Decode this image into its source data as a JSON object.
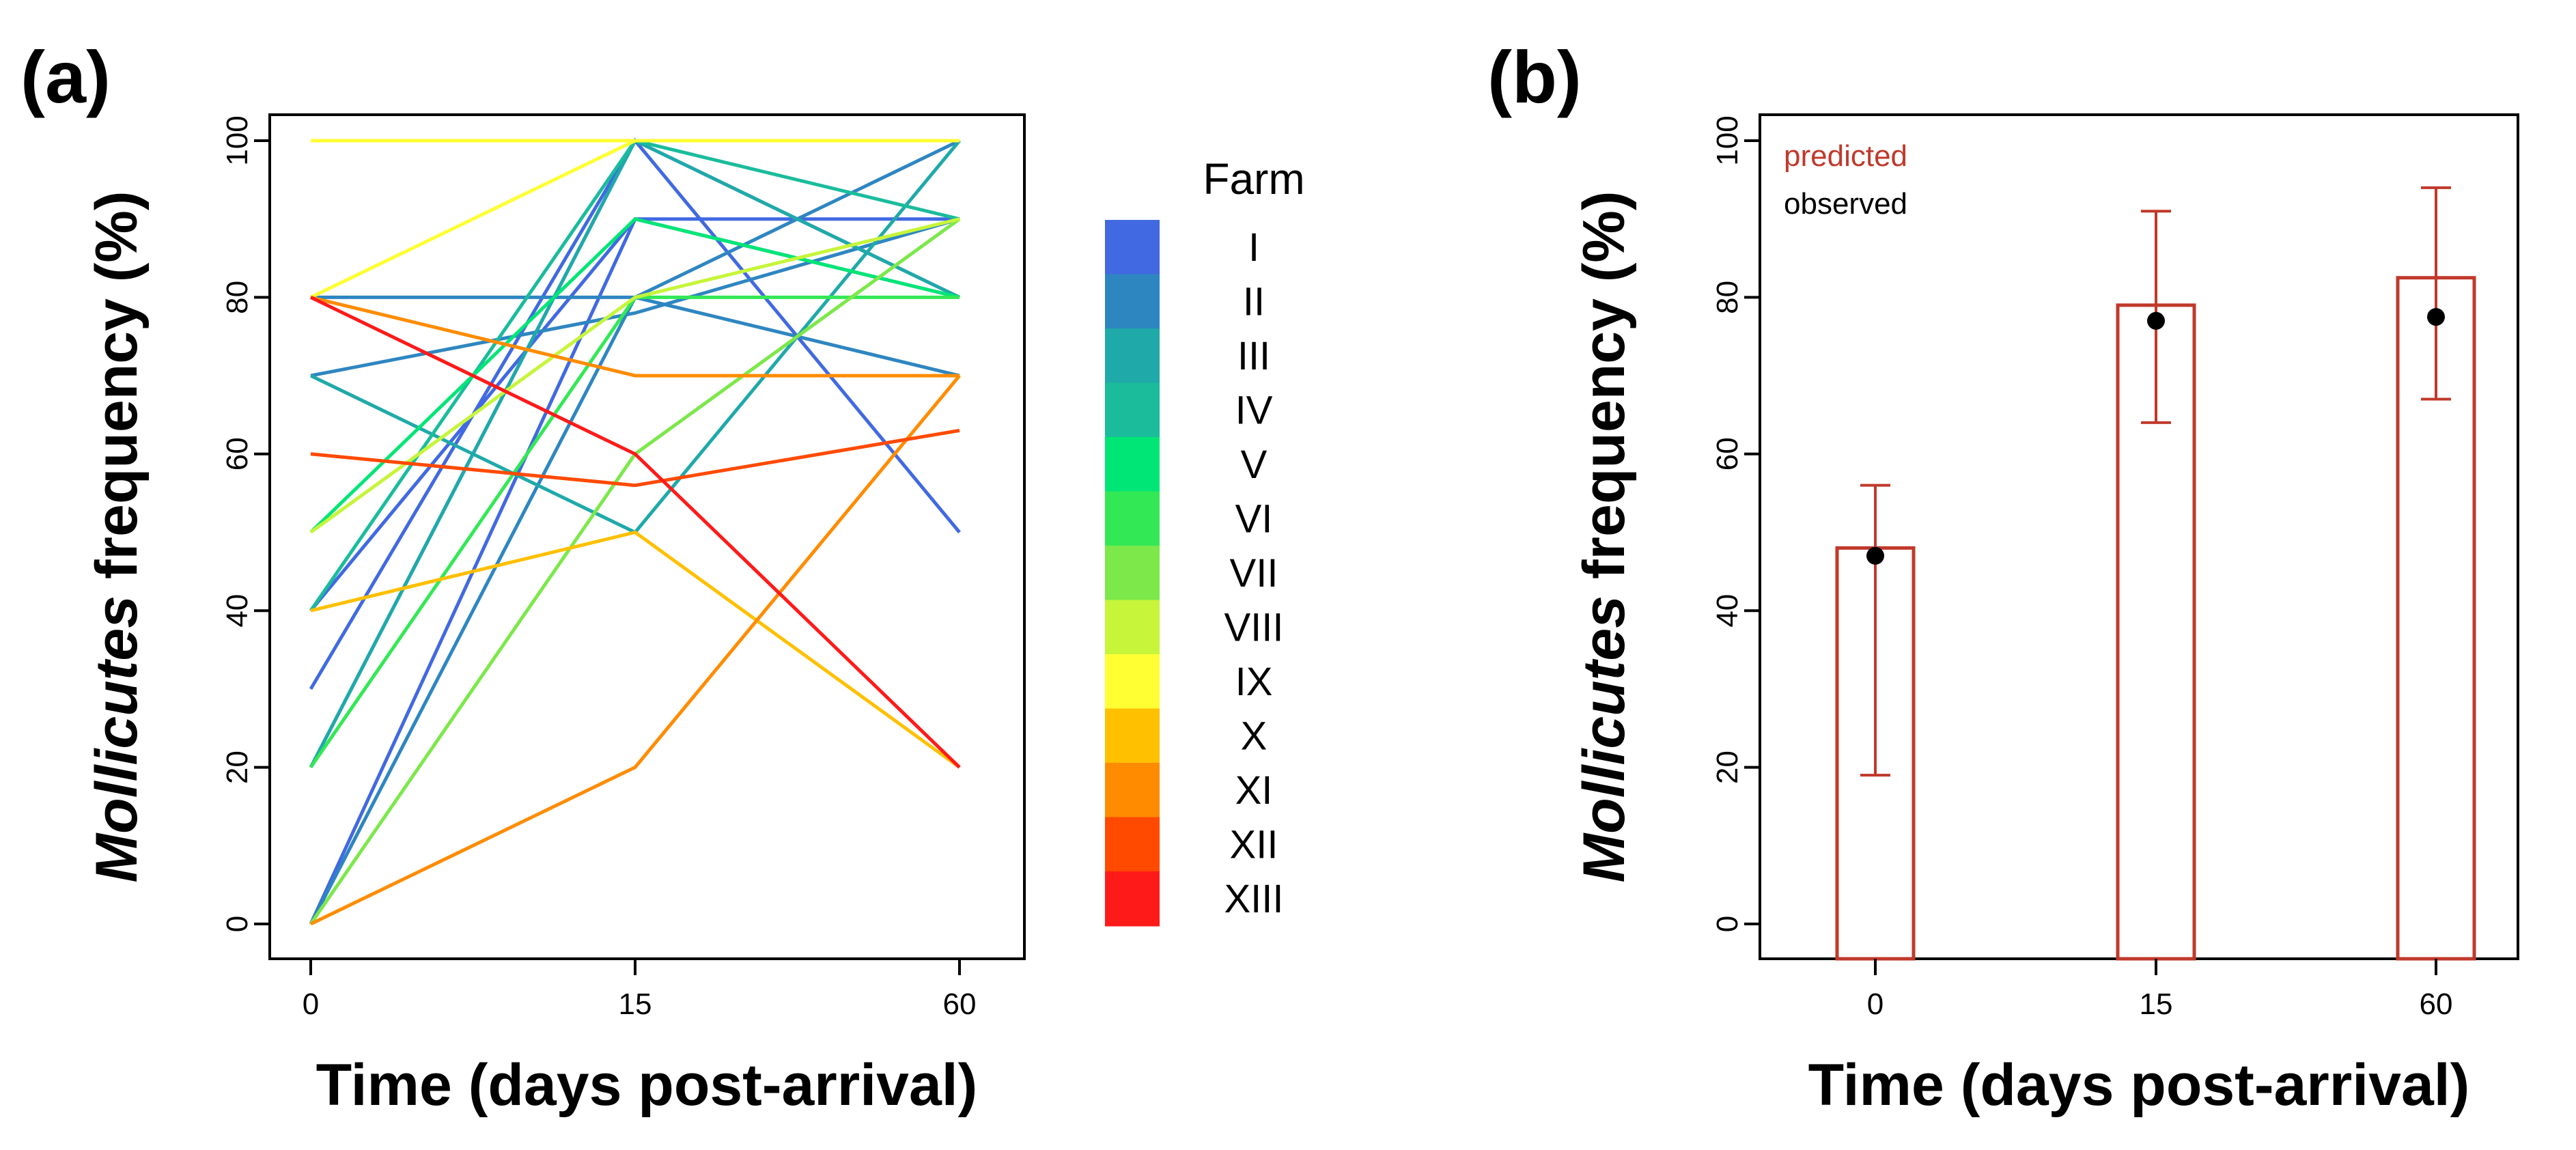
{
  "chart_data": [
    {
      "panel_label": "(a)",
      "type": "line",
      "xlabel": "Time (days post-arrival)",
      "ylabel_italic": "Mollicutes",
      "ylabel_rest": " frequency (%)",
      "x_categories": [
        "0",
        "15",
        "60"
      ],
      "y_ticks": [
        "0",
        "20",
        "40",
        "60",
        "80",
        "100"
      ],
      "ylim": [
        0,
        100
      ],
      "legend": {
        "title": "Farm",
        "placement": "right",
        "items": [
          {
            "label": "I",
            "color": "#4169E1"
          },
          {
            "label": "II",
            "color": "#2E86C1"
          },
          {
            "label": "III",
            "color": "#1FA9A9"
          },
          {
            "label": "IV",
            "color": "#1ABC9C"
          },
          {
            "label": "V",
            "color": "#00E676"
          },
          {
            "label": "VI",
            "color": "#33E855"
          },
          {
            "label": "VII",
            "color": "#7CE84A"
          },
          {
            "label": "VIII",
            "color": "#C6F53A"
          },
          {
            "label": "IX",
            "color": "#FFFF33"
          },
          {
            "label": "X",
            "color": "#FFC000"
          },
          {
            "label": "XI",
            "color": "#FF8C00"
          },
          {
            "label": "XII",
            "color": "#FF4A00"
          },
          {
            "label": "XIII",
            "color": "#FF1A1A"
          }
        ]
      },
      "series": [
        {
          "farm": "I",
          "values": [
            0,
            90,
            90
          ]
        },
        {
          "farm": "I",
          "values": [
            20,
            100,
            50
          ]
        },
        {
          "farm": "I",
          "values": [
            30,
            100,
            80
          ]
        },
        {
          "farm": "I",
          "values": [
            40,
            90,
            80
          ]
        },
        {
          "farm": "II",
          "values": [
            70,
            78,
            90
          ]
        },
        {
          "farm": "II",
          "values": [
            0,
            80,
            100
          ]
        },
        {
          "farm": "II",
          "values": [
            80,
            80,
            70
          ]
        },
        {
          "farm": "III",
          "values": [
            70,
            50,
            100
          ]
        },
        {
          "farm": "III",
          "values": [
            20,
            100,
            80
          ]
        },
        {
          "farm": "IV",
          "values": [
            40,
            100,
            90
          ]
        },
        {
          "farm": "V",
          "values": [
            50,
            90,
            80
          ]
        },
        {
          "farm": "VI",
          "values": [
            20,
            80,
            80
          ]
        },
        {
          "farm": "VII",
          "values": [
            0,
            60,
            90
          ]
        },
        {
          "farm": "VIII",
          "values": [
            50,
            80,
            90
          ]
        },
        {
          "farm": "IX",
          "values": [
            80,
            100,
            100
          ]
        },
        {
          "farm": "IX",
          "values": [
            100,
            100,
            100
          ]
        },
        {
          "farm": "X",
          "values": [
            40,
            50,
            20
          ]
        },
        {
          "farm": "XI",
          "values": [
            0,
            20,
            70
          ]
        },
        {
          "farm": "XI",
          "values": [
            80,
            70,
            70
          ]
        },
        {
          "farm": "XII",
          "values": [
            60,
            56,
            63
          ]
        },
        {
          "farm": "XIII",
          "values": [
            80,
            60,
            20
          ]
        }
      ]
    },
    {
      "panel_label": "(b)",
      "type": "bar",
      "xlabel": "Time (days post-arrival)",
      "ylabel_italic": "Mollicutes",
      "ylabel_rest": " frequency (%)",
      "categories": [
        "0",
        "15",
        "60"
      ],
      "y_ticks": [
        "0",
        "20",
        "40",
        "60",
        "80",
        "100"
      ],
      "ylim": [
        0,
        100
      ],
      "series": [
        {
          "name": "predicted",
          "color": "#C0392B",
          "values": [
            48,
            79,
            82.5
          ],
          "ci_low": [
            19,
            64,
            67
          ],
          "ci_high": [
            56,
            91,
            94
          ]
        },
        {
          "name": "observed",
          "color": "#000000",
          "values": [
            47,
            77,
            77.5
          ]
        }
      ],
      "legend": {
        "placement": "top-left",
        "items": [
          {
            "label": "predicted",
            "color": "#C0392B"
          },
          {
            "label": "observed",
            "color": "#000000"
          }
        ]
      }
    }
  ]
}
